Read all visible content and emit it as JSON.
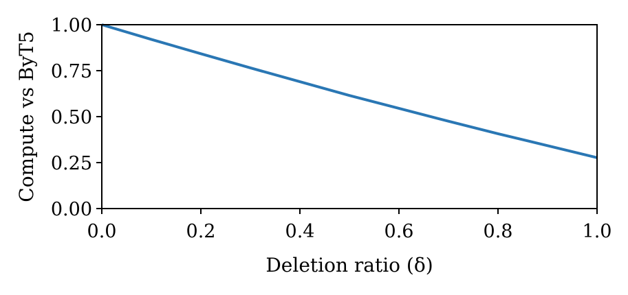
{
  "chart_data": {
    "type": "line",
    "title": "",
    "xlabel": "Deletion ratio (δ)",
    "ylabel": "Compute vs ByT5",
    "xlim": [
      0.0,
      1.0
    ],
    "ylim": [
      0.0,
      1.0
    ],
    "xticks": [
      0.0,
      0.2,
      0.4,
      0.6,
      0.8,
      1.0
    ],
    "xtick_labels": [
      "0.0",
      "0.2",
      "0.4",
      "0.6",
      "0.8",
      "1.0"
    ],
    "yticks": [
      0.0,
      0.25,
      0.5,
      0.75,
      1.0
    ],
    "ytick_labels": [
      "0.00",
      "0.25",
      "0.50",
      "0.75",
      "1.00"
    ],
    "grid": false,
    "legend": "none",
    "series": [
      {
        "color": "#2a77b4",
        "x": [
          0.0,
          0.1,
          0.2,
          0.3,
          0.4,
          0.5,
          0.6,
          0.7,
          0.8,
          0.9,
          1.0
        ],
        "y": [
          1.0,
          0.92,
          0.842,
          0.765,
          0.69,
          0.615,
          0.545,
          0.475,
          0.407,
          0.342,
          0.277
        ]
      }
    ]
  }
}
